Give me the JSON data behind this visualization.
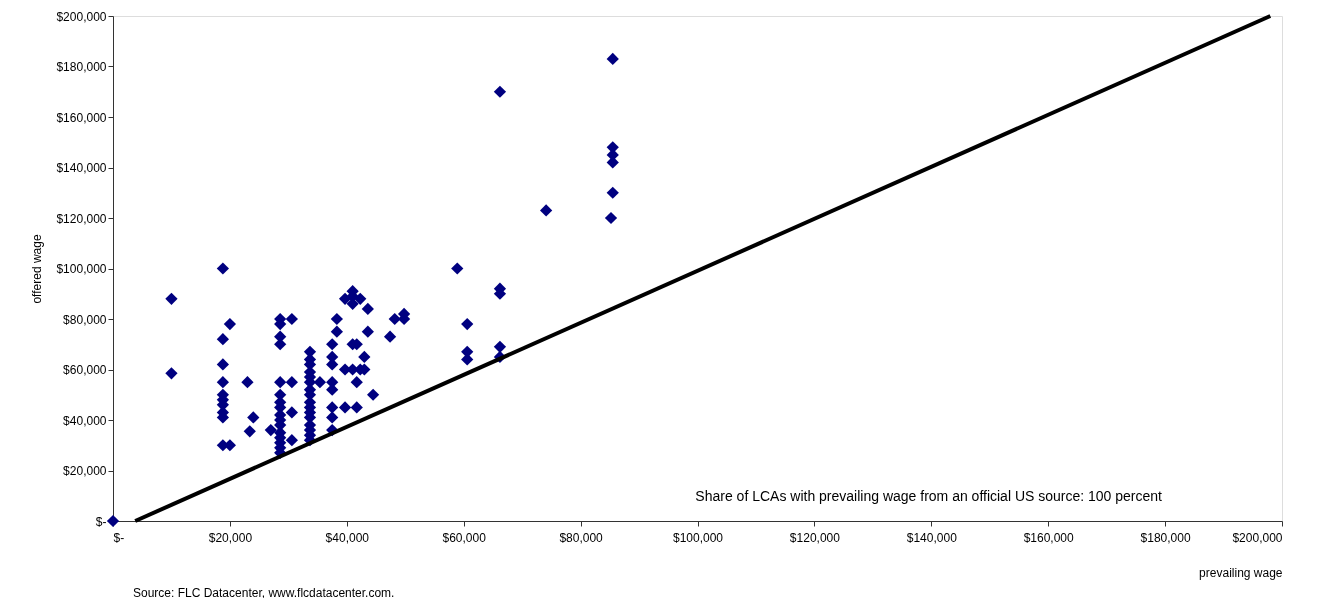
{
  "chart_data": {
    "type": "scatter",
    "xlabel": "prevailing wage",
    "ylabel": "offered wage",
    "xlim": [
      0,
      200000
    ],
    "ylim": [
      0,
      200000
    ],
    "xticks": [
      {
        "value": 0,
        "label": "$-"
      },
      {
        "value": 20000,
        "label": "$20,000"
      },
      {
        "value": 40000,
        "label": "$40,000"
      },
      {
        "value": 60000,
        "label": "$60,000"
      },
      {
        "value": 80000,
        "label": "$80,000"
      },
      {
        "value": 100000,
        "label": "$100,000"
      },
      {
        "value": 120000,
        "label": "$120,000"
      },
      {
        "value": 140000,
        "label": "$140,000"
      },
      {
        "value": 160000,
        "label": "$160,000"
      },
      {
        "value": 180000,
        "label": "$180,000"
      },
      {
        "value": 200000,
        "label": "$200,000"
      }
    ],
    "yticks": [
      {
        "value": 0,
        "label": "$-"
      },
      {
        "value": 20000,
        "label": "$20,000"
      },
      {
        "value": 40000,
        "label": "$40,000"
      },
      {
        "value": 60000,
        "label": "$60,000"
      },
      {
        "value": 80000,
        "label": "$80,000"
      },
      {
        "value": 100000,
        "label": "$100,000"
      },
      {
        "value": 120000,
        "label": "$120,000"
      },
      {
        "value": 140000,
        "label": "$140,000"
      },
      {
        "value": 160000,
        "label": "$160,000"
      },
      {
        "value": 180000,
        "label": "$180,000"
      },
      {
        "value": 200000,
        "label": "$200,000"
      }
    ],
    "grid": false,
    "marker": "diamond",
    "annotations": [
      "Share of LCAs with prevailing wage from an official US source: 100 percent",
      "Source:  FLC Datacenter, www.flcdatacenter.com."
    ],
    "series": [
      {
        "color": "#000080",
        "x": [
          0,
          10000,
          10000,
          18800,
          18800,
          18800,
          18800,
          18800,
          18800,
          18800,
          18800,
          18800,
          18800,
          20000,
          20000,
          23000,
          23400,
          24000,
          27000,
          28600,
          28600,
          28600,
          28600,
          28600,
          28600,
          28600,
          28600,
          28600,
          28600,
          28600,
          28600,
          28600,
          28600,
          28600,
          28600,
          30600,
          30600,
          30600,
          30600,
          33700,
          33700,
          33700,
          33700,
          33700,
          33700,
          33700,
          33700,
          33700,
          33700,
          33700,
          33700,
          33700,
          33700,
          33700,
          33700,
          35400,
          37500,
          37500,
          37500,
          37500,
          37500,
          37500,
          37500,
          37500,
          38300,
          38300,
          39700,
          39700,
          39700,
          41000,
          41000,
          41000,
          41000,
          41000,
          41700,
          41700,
          41700,
          42300,
          42300,
          43000,
          43000,
          43600,
          43600,
          44500,
          47400,
          48200,
          49800,
          49800,
          58900,
          60600,
          60600,
          60600,
          66200,
          66200,
          66200,
          66200,
          66200,
          74100,
          85500,
          85500,
          85500,
          85500,
          85500,
          85200
        ],
        "values": [
          0,
          88000,
          58500,
          100000,
          72000,
          62000,
          55000,
          50000,
          48000,
          46000,
          43000,
          41000,
          30000,
          78000,
          30000,
          55000,
          35500,
          41000,
          36000,
          80000,
          78000,
          73000,
          70000,
          55000,
          50000,
          47000,
          45000,
          42000,
          40000,
          38000,
          35000,
          33000,
          31000,
          29000,
          27000,
          80000,
          55000,
          43000,
          32000,
          67000,
          64000,
          62000,
          59000,
          57000,
          55000,
          52000,
          50000,
          47000,
          45000,
          43000,
          41000,
          38000,
          36000,
          34000,
          32000,
          55000,
          70000,
          65000,
          62000,
          55000,
          52000,
          45000,
          41000,
          36000,
          80000,
          75000,
          88000,
          60000,
          45000,
          91000,
          89000,
          86000,
          70000,
          60000,
          70000,
          55000,
          45000,
          88000,
          60000,
          65000,
          60000,
          84000,
          75000,
          50000,
          73000,
          80000,
          82000,
          80000,
          100000,
          78000,
          67000,
          64000,
          170000,
          92000,
          90000,
          69000,
          65000,
          123000,
          183000,
          148000,
          145000,
          142000,
          130000,
          120000
        ]
      },
      {
        "type": "line",
        "marker": "none",
        "color": "#000000",
        "x": [
          3800,
          198000
        ],
        "values": [
          0,
          200000
        ]
      }
    ]
  }
}
